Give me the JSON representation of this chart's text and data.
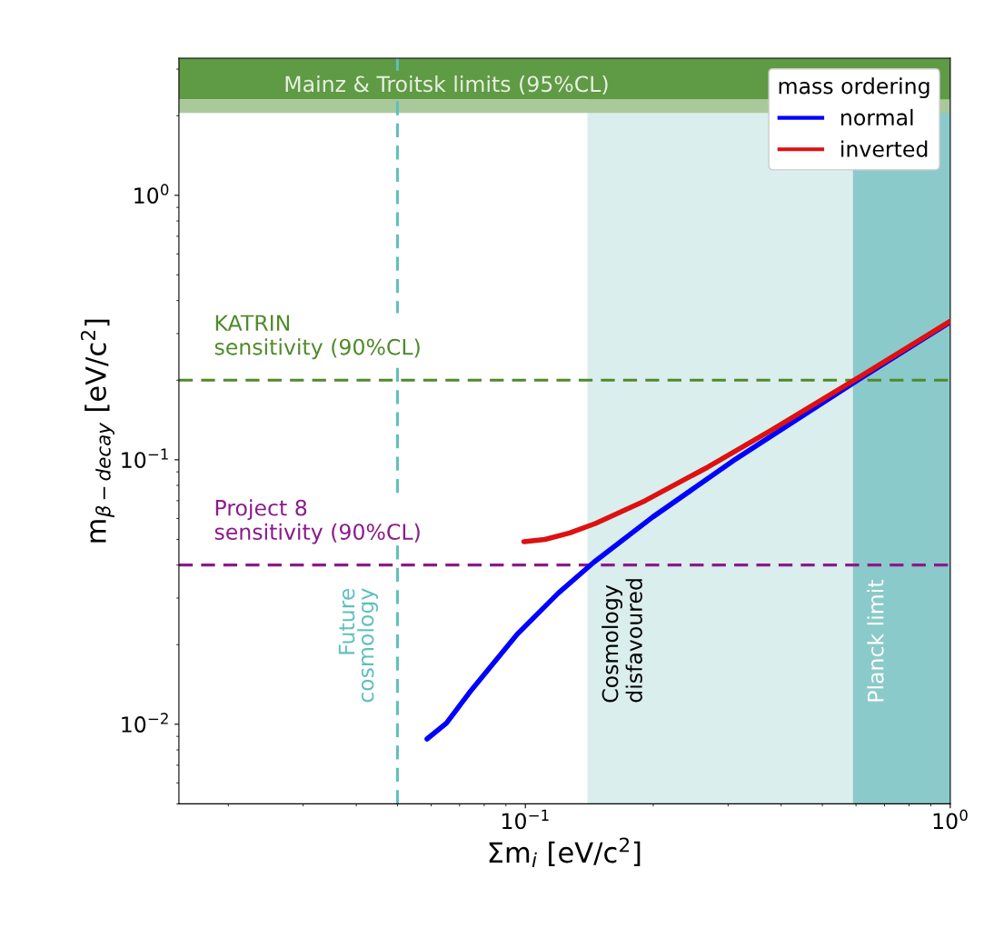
{
  "chart_data": {
    "type": "line",
    "xlabel": "Σm$_{i}$ [eV/c$^{2}$]",
    "ylabel": "m$_{β−decay}$ [eV/c$^{2}$]",
    "legend_title": "mass ordering",
    "log": "xy",
    "xlim": [
      0.0153,
      1.0
    ],
    "ylim": [
      0.005,
      3.3
    ],
    "xticks": [
      {
        "value": 0.1,
        "label": "10$^{−1}$"
      },
      {
        "value": 1.0,
        "label": "10$^{0}$"
      }
    ],
    "yticks": [
      {
        "value": 0.01,
        "label": "10$^{−2}$"
      },
      {
        "value": 0.1,
        "label": "10$^{−1}$"
      },
      {
        "value": 1.0,
        "label": "10$^{0}$"
      }
    ],
    "grid": false,
    "legend": "top right",
    "series": [
      {
        "name": "normal",
        "color": "#0000ff",
        "x": [
          0.0587,
          0.0652,
          0.0742,
          0.0957,
          0.1195,
          0.145,
          0.199,
          0.312,
          0.606,
          1.0
        ],
        "values": [
          0.0088,
          0.0101,
          0.0133,
          0.0219,
          0.0313,
          0.041,
          0.0606,
          0.1004,
          0.2002,
          0.332
        ]
      },
      {
        "name": "inverted",
        "color": "#dd1111",
        "x": [
          0.0992,
          0.1112,
          0.1271,
          0.1461,
          0.1913,
          0.2687,
          0.3797,
          0.6122,
          0.9975
        ],
        "values": [
          0.049,
          0.05,
          0.0529,
          0.0574,
          0.07,
          0.0938,
          0.1296,
          0.2059,
          0.3336
        ]
      }
    ],
    "bands": [
      {
        "axis": "x",
        "from": 0.14,
        "to": 0.59,
        "label": "Cosmology\ndisfavoured",
        "color": "#dbeeee"
      },
      {
        "axis": "x",
        "from": 0.59,
        "to": 1.0,
        "label": "Planck limit",
        "color": "#8bcaca"
      },
      {
        "axis": "y",
        "from": 2.3,
        "to": 3.3,
        "label": "Mainz & Troitsk limits (95%CL)",
        "color": "#5f9a45"
      },
      {
        "axis": "y",
        "from": 2.05,
        "to": 2.3,
        "label": null,
        "color": "#a9c99a"
      }
    ],
    "ref_lines": [
      {
        "axis": "x",
        "value": 0.05,
        "label": "Future\ncosmology",
        "color": "#5fbfbf",
        "line_style": "dashed"
      },
      {
        "axis": "y",
        "value": 0.2,
        "label": "KATRIN\nsensitivity (90%CL)",
        "color": "#4f8a2b",
        "line_style": "dashed"
      },
      {
        "axis": "y",
        "value": 0.04,
        "label": "Project 8\nsensitivity (90%CL)",
        "color": "#8b1a8b",
        "line_style": "dashed"
      }
    ]
  }
}
